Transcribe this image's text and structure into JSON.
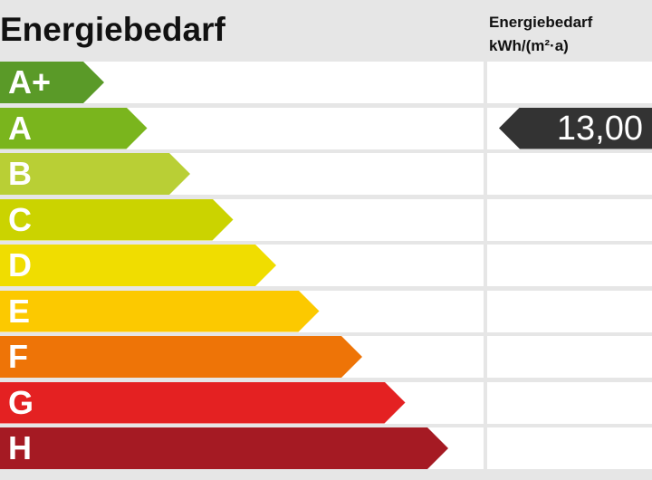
{
  "title": "Energiebedarf",
  "column_header": {
    "line1": "Energiebedarf",
    "line2": "kWh/(m²·a)"
  },
  "classes": [
    {
      "label": "A+",
      "color": "#5a9a28"
    },
    {
      "label": "A",
      "color": "#7ab51d"
    },
    {
      "label": "B",
      "color": "#b9cf35"
    },
    {
      "label": "C",
      "color": "#cbd300"
    },
    {
      "label": "D",
      "color": "#f0dd00"
    },
    {
      "label": "E",
      "color": "#fcc900"
    },
    {
      "label": "F",
      "color": "#ee7407"
    },
    {
      "label": "G",
      "color": "#e42122"
    },
    {
      "label": "H",
      "color": "#a51a23"
    }
  ],
  "indicator": {
    "value": "13,00",
    "class": "A",
    "color": "#333333"
  }
}
